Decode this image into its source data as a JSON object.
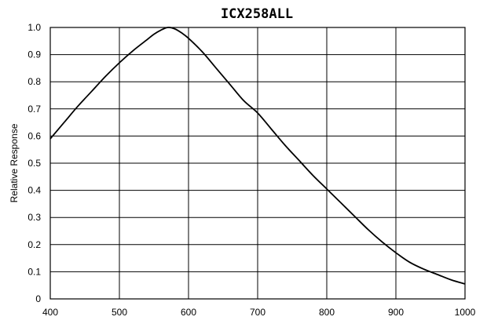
{
  "chart_data": {
    "type": "line",
    "title": "ICX258ALL",
    "xlabel": "",
    "ylabel": "Relative Response",
    "xlim": [
      400,
      1000
    ],
    "ylim": [
      0,
      1.0
    ],
    "grid": true,
    "legend": "none",
    "x_ticks": [
      "400",
      "500",
      "600",
      "700",
      "800",
      "900",
      "1000"
    ],
    "y_ticks": [
      "0",
      "0.1",
      "0.2",
      "0.3",
      "0.4",
      "0.5",
      "0.6",
      "0.7",
      "0.8",
      "0.9",
      "1.0"
    ],
    "series": [
      {
        "color": "#000000",
        "x": [
          400,
          420,
          440,
          460,
          480,
          500,
          520,
          540,
          550,
          560,
          570,
          580,
          590,
          600,
          620,
          640,
          660,
          680,
          700,
          720,
          740,
          760,
          780,
          800,
          820,
          840,
          860,
          880,
          900,
          920,
          940,
          960,
          980,
          1000
        ],
        "y": [
          0.59,
          0.65,
          0.71,
          0.765,
          0.82,
          0.87,
          0.915,
          0.955,
          0.975,
          0.99,
          1.0,
          0.995,
          0.98,
          0.96,
          0.91,
          0.85,
          0.79,
          0.73,
          0.685,
          0.625,
          0.565,
          0.51,
          0.455,
          0.405,
          0.355,
          0.305,
          0.255,
          0.21,
          0.17,
          0.135,
          0.11,
          0.09,
          0.07,
          0.055
        ]
      }
    ]
  }
}
